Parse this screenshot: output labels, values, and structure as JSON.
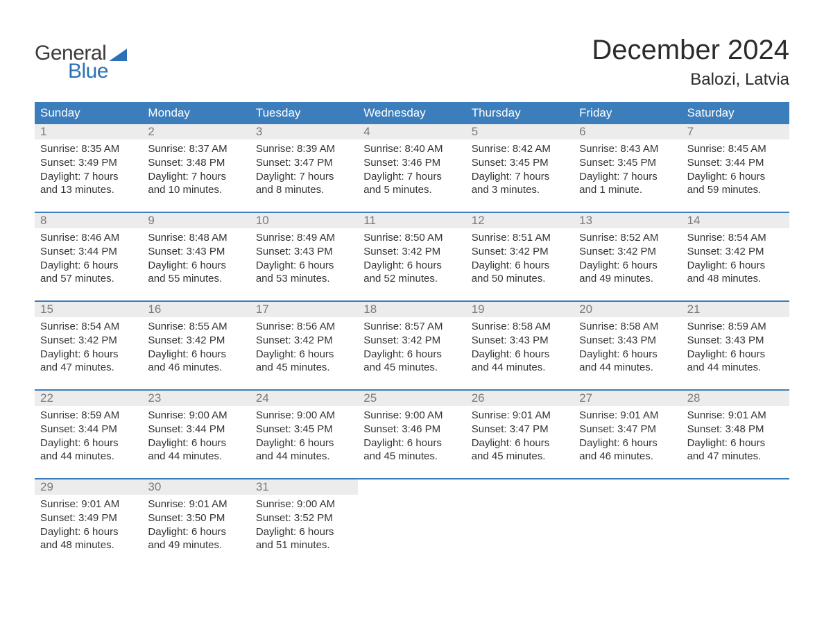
{
  "logo": {
    "word1": "General",
    "word2": "Blue"
  },
  "title": "December 2024",
  "location": "Balozi, Latvia",
  "colors": {
    "header_bg": "#3c7dbb",
    "header_fg": "#ffffff",
    "daynum_bg": "#ececec",
    "daynum_fg": "#7a7a7a",
    "rule": "#3c7dbb",
    "text": "#333333",
    "logo_blue": "#2a72b5",
    "logo_dark": "#3a3a3a",
    "page_bg": "#ffffff"
  },
  "typography": {
    "title_fontsize": 40,
    "location_fontsize": 24,
    "dow_fontsize": 17,
    "daynum_fontsize": 17,
    "body_fontsize": 15,
    "logo_fontsize": 30
  },
  "days_of_week": [
    "Sunday",
    "Monday",
    "Tuesday",
    "Wednesday",
    "Thursday",
    "Friday",
    "Saturday"
  ],
  "weeks": [
    [
      {
        "n": "1",
        "sunrise": "Sunrise: 8:35 AM",
        "sunset": "Sunset: 3:49 PM",
        "d1": "Daylight: 7 hours",
        "d2": "and 13 minutes."
      },
      {
        "n": "2",
        "sunrise": "Sunrise: 8:37 AM",
        "sunset": "Sunset: 3:48 PM",
        "d1": "Daylight: 7 hours",
        "d2": "and 10 minutes."
      },
      {
        "n": "3",
        "sunrise": "Sunrise: 8:39 AM",
        "sunset": "Sunset: 3:47 PM",
        "d1": "Daylight: 7 hours",
        "d2": "and 8 minutes."
      },
      {
        "n": "4",
        "sunrise": "Sunrise: 8:40 AM",
        "sunset": "Sunset: 3:46 PM",
        "d1": "Daylight: 7 hours",
        "d2": "and 5 minutes."
      },
      {
        "n": "5",
        "sunrise": "Sunrise: 8:42 AM",
        "sunset": "Sunset: 3:45 PM",
        "d1": "Daylight: 7 hours",
        "d2": "and 3 minutes."
      },
      {
        "n": "6",
        "sunrise": "Sunrise: 8:43 AM",
        "sunset": "Sunset: 3:45 PM",
        "d1": "Daylight: 7 hours",
        "d2": "and 1 minute."
      },
      {
        "n": "7",
        "sunrise": "Sunrise: 8:45 AM",
        "sunset": "Sunset: 3:44 PM",
        "d1": "Daylight: 6 hours",
        "d2": "and 59 minutes."
      }
    ],
    [
      {
        "n": "8",
        "sunrise": "Sunrise: 8:46 AM",
        "sunset": "Sunset: 3:44 PM",
        "d1": "Daylight: 6 hours",
        "d2": "and 57 minutes."
      },
      {
        "n": "9",
        "sunrise": "Sunrise: 8:48 AM",
        "sunset": "Sunset: 3:43 PM",
        "d1": "Daylight: 6 hours",
        "d2": "and 55 minutes."
      },
      {
        "n": "10",
        "sunrise": "Sunrise: 8:49 AM",
        "sunset": "Sunset: 3:43 PM",
        "d1": "Daylight: 6 hours",
        "d2": "and 53 minutes."
      },
      {
        "n": "11",
        "sunrise": "Sunrise: 8:50 AM",
        "sunset": "Sunset: 3:42 PM",
        "d1": "Daylight: 6 hours",
        "d2": "and 52 minutes."
      },
      {
        "n": "12",
        "sunrise": "Sunrise: 8:51 AM",
        "sunset": "Sunset: 3:42 PM",
        "d1": "Daylight: 6 hours",
        "d2": "and 50 minutes."
      },
      {
        "n": "13",
        "sunrise": "Sunrise: 8:52 AM",
        "sunset": "Sunset: 3:42 PM",
        "d1": "Daylight: 6 hours",
        "d2": "and 49 minutes."
      },
      {
        "n": "14",
        "sunrise": "Sunrise: 8:54 AM",
        "sunset": "Sunset: 3:42 PM",
        "d1": "Daylight: 6 hours",
        "d2": "and 48 minutes."
      }
    ],
    [
      {
        "n": "15",
        "sunrise": "Sunrise: 8:54 AM",
        "sunset": "Sunset: 3:42 PM",
        "d1": "Daylight: 6 hours",
        "d2": "and 47 minutes."
      },
      {
        "n": "16",
        "sunrise": "Sunrise: 8:55 AM",
        "sunset": "Sunset: 3:42 PM",
        "d1": "Daylight: 6 hours",
        "d2": "and 46 minutes."
      },
      {
        "n": "17",
        "sunrise": "Sunrise: 8:56 AM",
        "sunset": "Sunset: 3:42 PM",
        "d1": "Daylight: 6 hours",
        "d2": "and 45 minutes."
      },
      {
        "n": "18",
        "sunrise": "Sunrise: 8:57 AM",
        "sunset": "Sunset: 3:42 PM",
        "d1": "Daylight: 6 hours",
        "d2": "and 45 minutes."
      },
      {
        "n": "19",
        "sunrise": "Sunrise: 8:58 AM",
        "sunset": "Sunset: 3:43 PM",
        "d1": "Daylight: 6 hours",
        "d2": "and 44 minutes."
      },
      {
        "n": "20",
        "sunrise": "Sunrise: 8:58 AM",
        "sunset": "Sunset: 3:43 PM",
        "d1": "Daylight: 6 hours",
        "d2": "and 44 minutes."
      },
      {
        "n": "21",
        "sunrise": "Sunrise: 8:59 AM",
        "sunset": "Sunset: 3:43 PM",
        "d1": "Daylight: 6 hours",
        "d2": "and 44 minutes."
      }
    ],
    [
      {
        "n": "22",
        "sunrise": "Sunrise: 8:59 AM",
        "sunset": "Sunset: 3:44 PM",
        "d1": "Daylight: 6 hours",
        "d2": "and 44 minutes."
      },
      {
        "n": "23",
        "sunrise": "Sunrise: 9:00 AM",
        "sunset": "Sunset: 3:44 PM",
        "d1": "Daylight: 6 hours",
        "d2": "and 44 minutes."
      },
      {
        "n": "24",
        "sunrise": "Sunrise: 9:00 AM",
        "sunset": "Sunset: 3:45 PM",
        "d1": "Daylight: 6 hours",
        "d2": "and 44 minutes."
      },
      {
        "n": "25",
        "sunrise": "Sunrise: 9:00 AM",
        "sunset": "Sunset: 3:46 PM",
        "d1": "Daylight: 6 hours",
        "d2": "and 45 minutes."
      },
      {
        "n": "26",
        "sunrise": "Sunrise: 9:01 AM",
        "sunset": "Sunset: 3:47 PM",
        "d1": "Daylight: 6 hours",
        "d2": "and 45 minutes."
      },
      {
        "n": "27",
        "sunrise": "Sunrise: 9:01 AM",
        "sunset": "Sunset: 3:47 PM",
        "d1": "Daylight: 6 hours",
        "d2": "and 46 minutes."
      },
      {
        "n": "28",
        "sunrise": "Sunrise: 9:01 AM",
        "sunset": "Sunset: 3:48 PM",
        "d1": "Daylight: 6 hours",
        "d2": "and 47 minutes."
      }
    ],
    [
      {
        "n": "29",
        "sunrise": "Sunrise: 9:01 AM",
        "sunset": "Sunset: 3:49 PM",
        "d1": "Daylight: 6 hours",
        "d2": "and 48 minutes."
      },
      {
        "n": "30",
        "sunrise": "Sunrise: 9:01 AM",
        "sunset": "Sunset: 3:50 PM",
        "d1": "Daylight: 6 hours",
        "d2": "and 49 minutes."
      },
      {
        "n": "31",
        "sunrise": "Sunrise: 9:00 AM",
        "sunset": "Sunset: 3:52 PM",
        "d1": "Daylight: 6 hours",
        "d2": "and 51 minutes."
      },
      null,
      null,
      null,
      null
    ]
  ]
}
